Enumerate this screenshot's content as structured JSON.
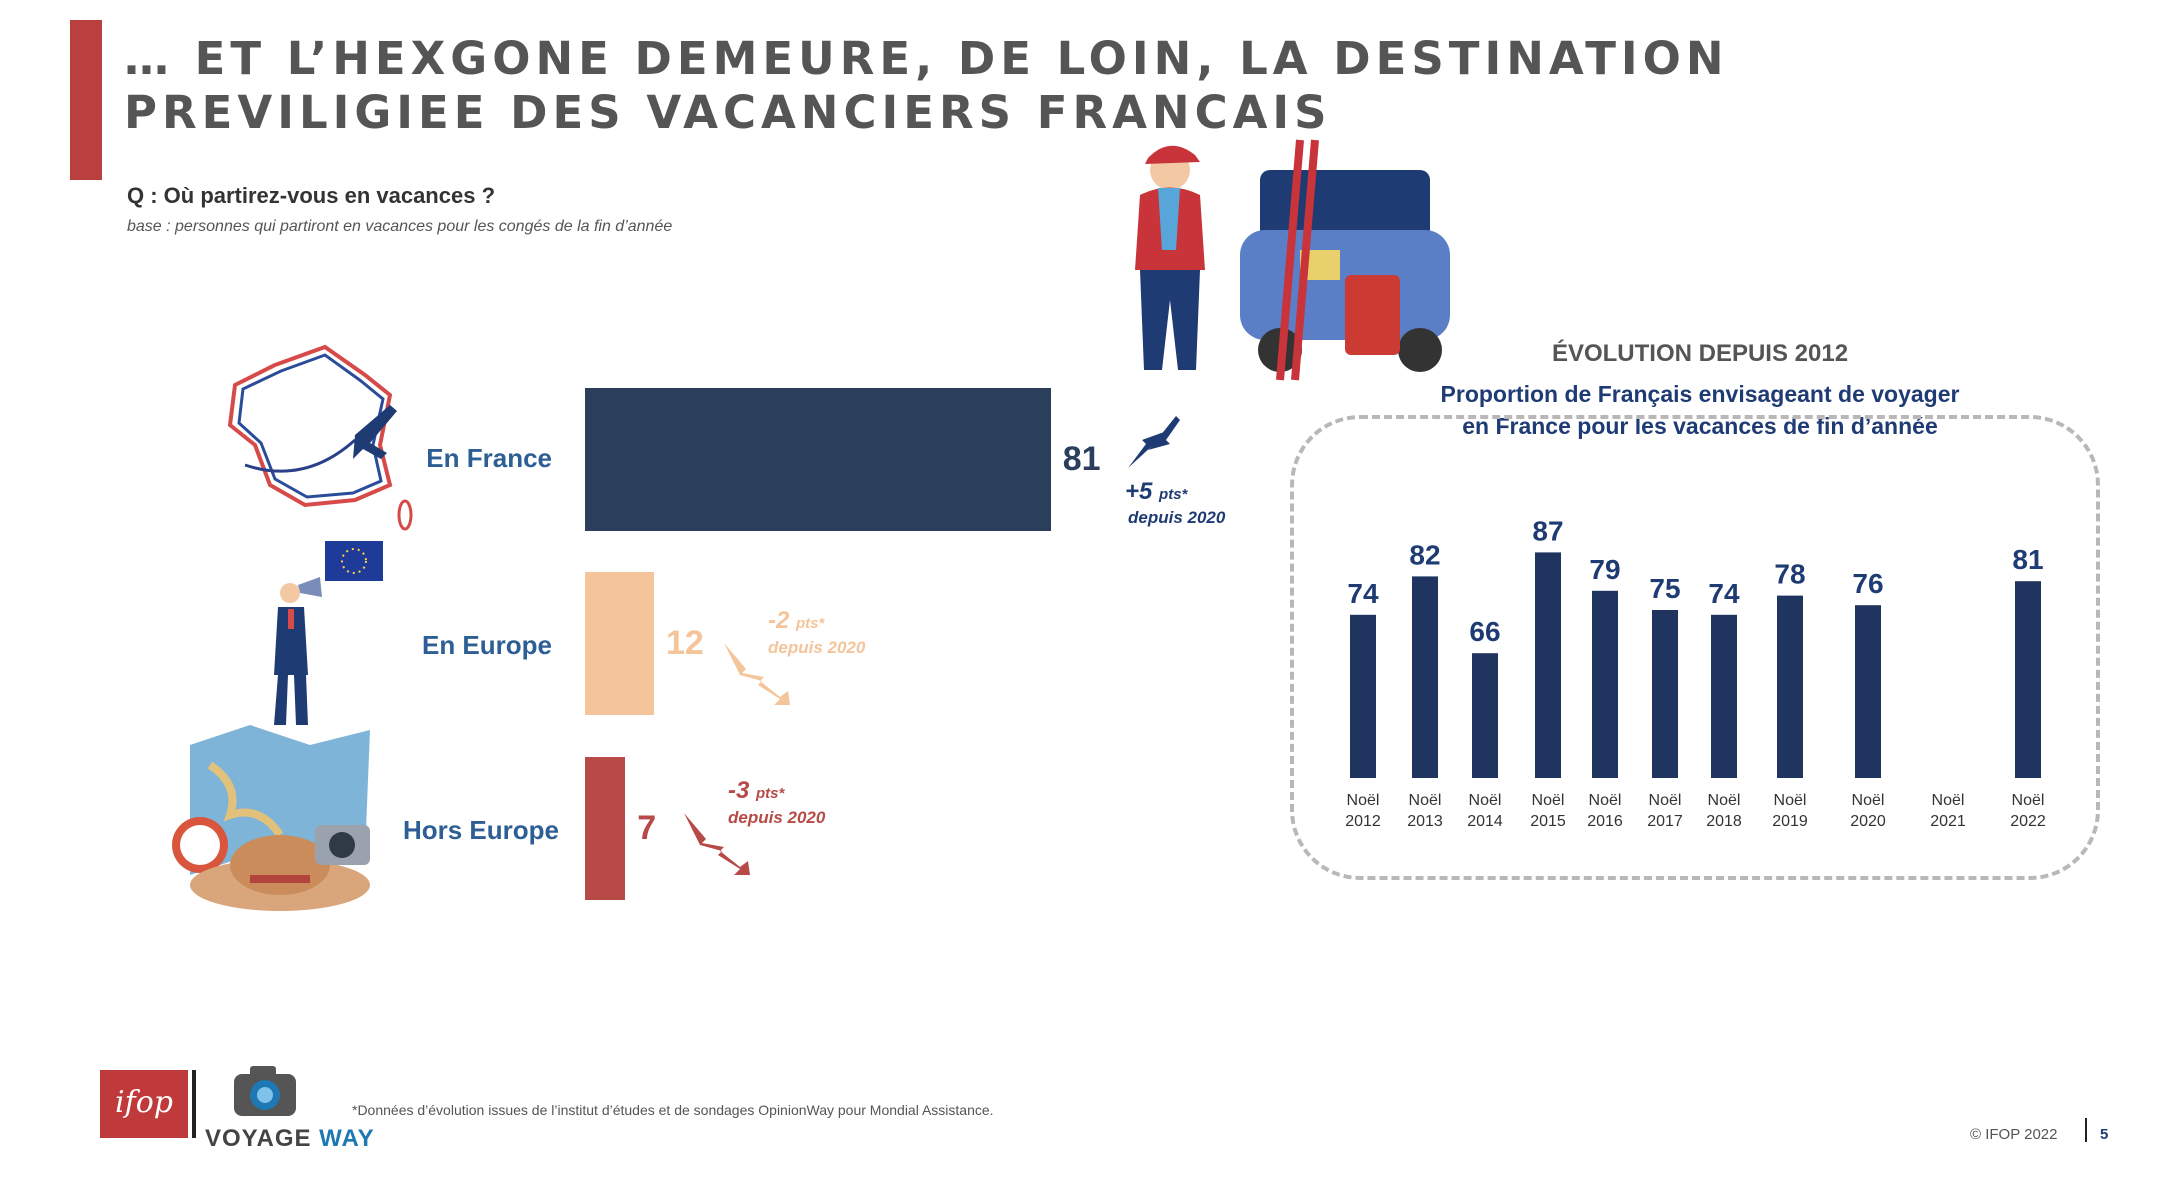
{
  "header": {
    "title_line1": "… ET L’HEXGONE DEMEURE, DE LOIN, LA DESTINATION",
    "title_line2": "PREVILIGIEE DES VACANCIERS FRANCAIS",
    "accent_color": "#b9403f"
  },
  "question": "Q : Où partirez-vous en vacances ?",
  "base": "base : personnes qui partiront en vacances pour les congés de la fin d’année",
  "chart_data": [
    {
      "type": "bar",
      "orientation": "horizontal",
      "categories": [
        "En France",
        "En Europe",
        "Hors Europe"
      ],
      "values": [
        81,
        12,
        7
      ],
      "colors": [
        "#2b3f5c",
        "#f4c49a",
        "#b74a47"
      ],
      "value_colors": [
        "#2b3f5c",
        "#f4c49a",
        "#b74a47"
      ],
      "deltas": [
        {
          "points": "+5",
          "unit": "pts*",
          "since": "depuis 2020",
          "direction": "up",
          "color": "#1f3b73"
        },
        {
          "points": "-2",
          "unit": "pts*",
          "since": "depuis 2020",
          "direction": "down",
          "color": "#f4c49a"
        },
        {
          "points": "-3",
          "unit": "pts*",
          "since": "depuis 2020",
          "direction": "down",
          "color": "#b74a47"
        }
      ],
      "xlim": [
        0,
        100
      ]
    },
    {
      "type": "bar",
      "title": "ÉVOLUTION DEPUIS 2012",
      "subtitle": "Proportion de Français envisageant de voyager en France pour les vacances de fin d’année",
      "categories": [
        [
          "Noël",
          "2012"
        ],
        [
          "Noël",
          "2013"
        ],
        [
          "Noël",
          "2014"
        ],
        [
          "Noël",
          "2015"
        ],
        [
          "Noël",
          "2016"
        ],
        [
          "Noël",
          "2017"
        ],
        [
          "Noël",
          "2018"
        ],
        [
          "Noël",
          "2019"
        ],
        [
          "Noël",
          "2020"
        ],
        [
          "Noël",
          "2021"
        ],
        [
          "Noël",
          "2022"
        ]
      ],
      "values": [
        74,
        82,
        66,
        87,
        79,
        75,
        74,
        78,
        76,
        null,
        81
      ],
      "bar_color": "#1f3560",
      "ylim": [
        40,
        90
      ]
    }
  ],
  "footer": {
    "footnote": "*Données d’évolution issues de l’institut d’études et de sondages OpinionWay pour Mondial Assistance.",
    "copyright": "© IFOP 2022",
    "page": "5",
    "ifop_logo": "ifop",
    "voyage_logo_a": "VOYAGE",
    "voyage_logo_b": "WAY"
  },
  "icons": [
    "france-map-plane-icon",
    "europe-flag-megaphone-icon",
    "travel-map-hat-icon",
    "ski-car-traveler-icon",
    "camera-globe-logo-icon",
    "trend-arrow-icon"
  ]
}
